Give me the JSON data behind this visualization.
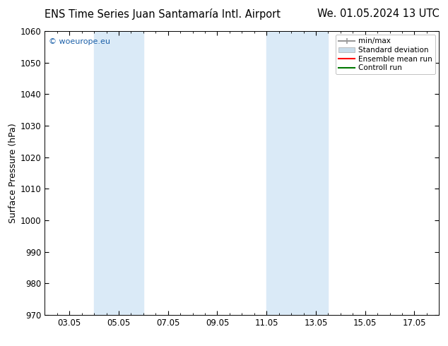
{
  "title_left": "ENS Time Series Juan Santamaría Intl. Airport",
  "title_right": "We. 01.05.2024 13 UTC",
  "ylabel": "Surface Pressure (hPa)",
  "ylim": [
    970,
    1060
  ],
  "yticks": [
    970,
    980,
    990,
    1000,
    1010,
    1020,
    1030,
    1040,
    1050,
    1060
  ],
  "xtick_labels": [
    "03.05",
    "05.05",
    "07.05",
    "09.05",
    "11.05",
    "13.05",
    "15.05",
    "17.05"
  ],
  "xtick_positions": [
    0,
    2,
    4,
    6,
    8,
    10,
    12,
    14
  ],
  "xlim": [
    -1,
    15
  ],
  "shaded_bands": [
    {
      "x_start": 1.0,
      "x_end": 3.0,
      "color": "#daeaf7"
    },
    {
      "x_start": 8.0,
      "x_end": 10.5,
      "color": "#daeaf7"
    }
  ],
  "watermark": "© woeurope.eu",
  "watermark_color": "#1a5fa8",
  "bg_color": "#ffffff",
  "plot_bg_color": "#ffffff",
  "legend_entries": [
    {
      "label": "min/max",
      "color": "#999999",
      "lw": 1.5
    },
    {
      "label": "Standard deviation",
      "color": "#c8dcea",
      "lw": 6
    },
    {
      "label": "Ensemble mean run",
      "color": "#ff0000",
      "lw": 1.5
    },
    {
      "label": "Controll run",
      "color": "#007700",
      "lw": 1.5
    }
  ],
  "title_fontsize": 10.5,
  "tick_fontsize": 8.5,
  "ylabel_fontsize": 9,
  "watermark_fontsize": 8
}
